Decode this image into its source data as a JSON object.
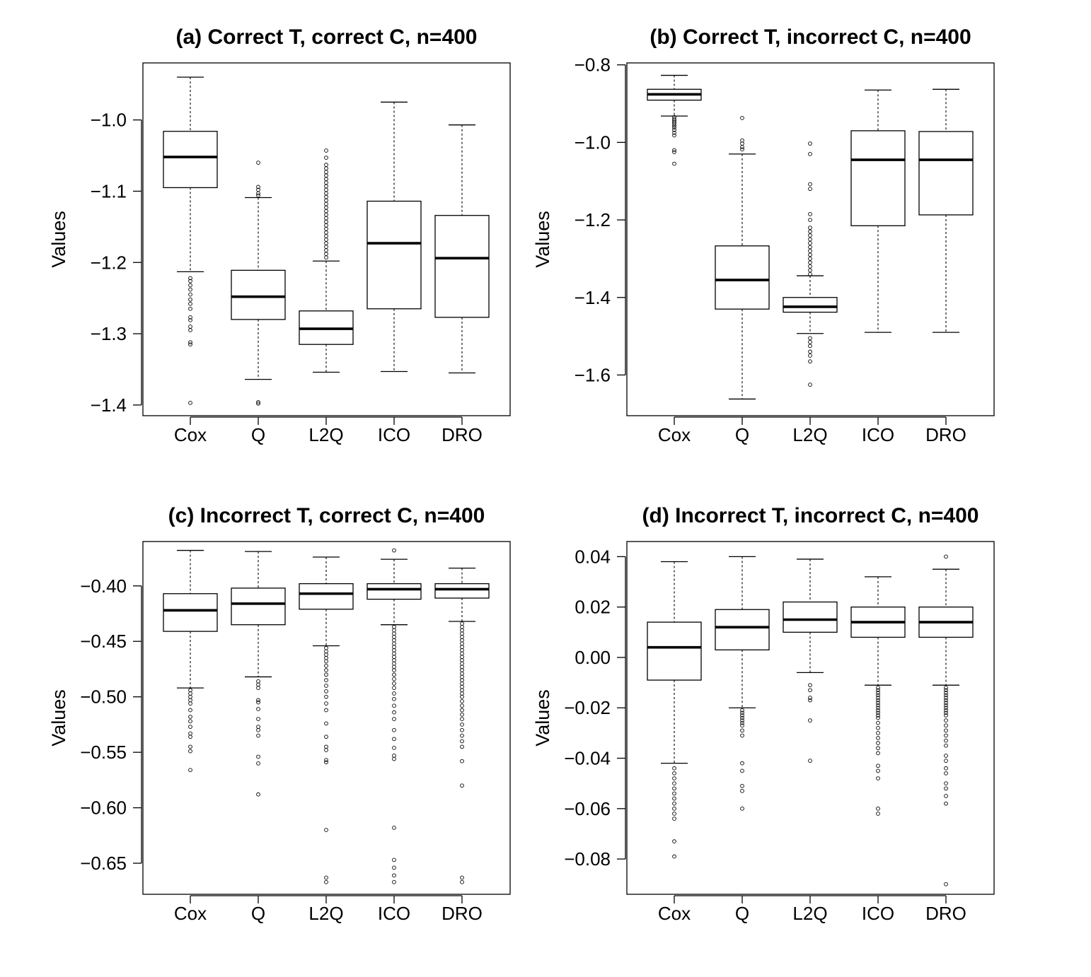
{
  "chart_data": [
    {
      "type": "box",
      "title": "(a) Correct T, correct C, n=400",
      "ylabel": "Values",
      "categories": [
        "Cox",
        "Q",
        "L2Q",
        "ICO",
        "DRO"
      ],
      "ylim": [
        -1.415,
        -0.92
      ],
      "yticks": [
        "-1.0",
        "-1.1",
        "-1.2",
        "-1.3",
        "-1.4"
      ],
      "boxes": [
        {
          "name": "Cox",
          "whisker_low": -1.213,
          "q1": -1.095,
          "median": -1.052,
          "q3": -1.016,
          "whisker_high": -0.94,
          "outliers": [
            -1.222,
            -1.226,
            -1.232,
            -1.238,
            -1.245,
            -1.252,
            -1.258,
            -1.265,
            -1.277,
            -1.281,
            -1.29,
            -1.295,
            -1.312,
            -1.315,
            -1.397
          ]
        },
        {
          "name": "Q",
          "whisker_low": -1.364,
          "q1": -1.28,
          "median": -1.248,
          "q3": -1.211,
          "whisker_high": -1.109,
          "outliers": [
            -1.06,
            -1.094,
            -1.098,
            -1.103,
            -1.106,
            -1.396,
            -1.398
          ]
        },
        {
          "name": "L2Q",
          "whisker_low": -1.354,
          "q1": -1.315,
          "median": -1.293,
          "q3": -1.268,
          "whisker_high": -1.198,
          "outliers": [
            -1.043,
            -1.053,
            -1.063,
            -1.068,
            -1.073,
            -1.078,
            -1.083,
            -1.088,
            -1.093,
            -1.098,
            -1.103,
            -1.108,
            -1.113,
            -1.118,
            -1.123,
            -1.128,
            -1.133,
            -1.138,
            -1.143,
            -1.148,
            -1.153,
            -1.158,
            -1.163,
            -1.168,
            -1.173,
            -1.178,
            -1.183,
            -1.188,
            -1.193
          ]
        },
        {
          "name": "ICO",
          "whisker_low": -1.353,
          "q1": -1.265,
          "median": -1.173,
          "q3": -1.114,
          "whisker_high": -0.975,
          "outliers": []
        },
        {
          "name": "DRO",
          "whisker_low": -1.355,
          "q1": -1.277,
          "median": -1.194,
          "q3": -1.134,
          "whisker_high": -1.007,
          "outliers": []
        }
      ]
    },
    {
      "type": "box",
      "title": "(b) Correct T, incorrect C, n=400",
      "ylabel": "Values",
      "categories": [
        "Cox",
        "Q",
        "L2Q",
        "ICO",
        "DRO"
      ],
      "ylim": [
        -1.705,
        -0.795
      ],
      "yticks": [
        "-0.8",
        "-1.0",
        "-1.2",
        "-1.4",
        "-1.6"
      ],
      "boxes": [
        {
          "name": "Cox",
          "whisker_low": -0.932,
          "q1": -0.891,
          "median": -0.876,
          "q3": -0.863,
          "whisker_high": -0.827,
          "outliers": [
            -0.935,
            -0.94,
            -0.944,
            -0.948,
            -0.952,
            -0.957,
            -0.962,
            -0.968,
            -0.975,
            -0.982,
            -1.02,
            -1.025,
            -1.055
          ]
        },
        {
          "name": "Q",
          "whisker_low": -1.662,
          "q1": -1.43,
          "median": -1.355,
          "q3": -1.267,
          "whisker_high": -1.03,
          "outliers": [
            -0.937,
            -0.995,
            -1.003,
            -1.012,
            -1.018
          ]
        },
        {
          "name": "L2Q",
          "whisker_low": -1.493,
          "q1": -1.438,
          "median": -1.424,
          "q3": -1.4,
          "whisker_high": -1.344,
          "outliers": [
            -1.003,
            -1.03,
            -1.108,
            -1.12,
            -1.185,
            -1.2,
            -1.22,
            -1.23,
            -1.24,
            -1.25,
            -1.26,
            -1.27,
            -1.28,
            -1.29,
            -1.3,
            -1.31,
            -1.32,
            -1.33,
            -1.34,
            -1.505,
            -1.515,
            -1.525,
            -1.54,
            -1.55,
            -1.565,
            -1.625
          ]
        },
        {
          "name": "ICO",
          "whisker_low": -1.49,
          "q1": -1.215,
          "median": -1.045,
          "q3": -0.97,
          "whisker_high": -0.865,
          "outliers": []
        },
        {
          "name": "DRO",
          "whisker_low": -1.49,
          "q1": -1.187,
          "median": -1.045,
          "q3": -0.972,
          "whisker_high": -0.863,
          "outliers": []
        }
      ]
    },
    {
      "type": "box",
      "title": "(c) Incorrect T, correct C, n=400",
      "ylabel": "Values",
      "categories": [
        "Cox",
        "Q",
        "L2Q",
        "ICO",
        "DRO"
      ],
      "ylim": [
        -0.678,
        -0.36
      ],
      "yticks": [
        "-0.40",
        "-0.45",
        "-0.50",
        "-0.55",
        "-0.60",
        "-0.65"
      ],
      "boxes": [
        {
          "name": "Cox",
          "whisker_low": -0.492,
          "q1": -0.441,
          "median": -0.422,
          "q3": -0.407,
          "whisker_high": -0.368,
          "outliers": [
            -0.494,
            -0.497,
            -0.5,
            -0.503,
            -0.506,
            -0.512,
            -0.518,
            -0.522,
            -0.527,
            -0.533,
            -0.536,
            -0.545,
            -0.549,
            -0.566
          ]
        },
        {
          "name": "Q",
          "whisker_low": -0.482,
          "q1": -0.435,
          "median": -0.416,
          "q3": -0.402,
          "whisker_high": -0.369,
          "outliers": [
            -0.486,
            -0.489,
            -0.492,
            -0.503,
            -0.505,
            -0.511,
            -0.52,
            -0.527,
            -0.53,
            -0.535,
            -0.554,
            -0.56,
            -0.588
          ]
        },
        {
          "name": "L2Q",
          "whisker_low": -0.454,
          "q1": -0.421,
          "median": -0.407,
          "q3": -0.398,
          "whisker_high": -0.374,
          "outliers": [
            -0.456,
            -0.459,
            -0.462,
            -0.465,
            -0.468,
            -0.472,
            -0.476,
            -0.48,
            -0.485,
            -0.49,
            -0.495,
            -0.5,
            -0.506,
            -0.512,
            -0.524,
            -0.536,
            -0.545,
            -0.548,
            -0.557,
            -0.559,
            -0.62,
            -0.663,
            -0.667
          ]
        },
        {
          "name": "ICO",
          "whisker_low": -0.435,
          "q1": -0.412,
          "median": -0.403,
          "q3": -0.398,
          "whisker_high": -0.376,
          "outliers": [
            -0.368,
            -0.437,
            -0.44,
            -0.443,
            -0.446,
            -0.449,
            -0.452,
            -0.455,
            -0.458,
            -0.461,
            -0.464,
            -0.467,
            -0.47,
            -0.473,
            -0.476,
            -0.48,
            -0.484,
            -0.488,
            -0.492,
            -0.497,
            -0.502,
            -0.508,
            -0.514,
            -0.52,
            -0.53,
            -0.538,
            -0.546,
            -0.553,
            -0.556,
            -0.618,
            -0.647,
            -0.654,
            -0.661,
            -0.667
          ]
        },
        {
          "name": "DRO",
          "whisker_low": -0.432,
          "q1": -0.411,
          "median": -0.403,
          "q3": -0.398,
          "whisker_high": -0.384,
          "outliers": [
            -0.434,
            -0.437,
            -0.44,
            -0.443,
            -0.446,
            -0.449,
            -0.452,
            -0.455,
            -0.458,
            -0.461,
            -0.464,
            -0.467,
            -0.47,
            -0.473,
            -0.476,
            -0.479,
            -0.482,
            -0.485,
            -0.488,
            -0.491,
            -0.494,
            -0.497,
            -0.5,
            -0.504,
            -0.508,
            -0.512,
            -0.516,
            -0.52,
            -0.525,
            -0.53,
            -0.535,
            -0.54,
            -0.545,
            -0.558,
            -0.58,
            -0.663,
            -0.667
          ]
        }
      ]
    },
    {
      "type": "box",
      "title": "(d) Incorrect T, incorrect C, n=400",
      "ylabel": "Values",
      "categories": [
        "Cox",
        "Q",
        "L2Q",
        "ICO",
        "DRO"
      ],
      "ylim": [
        -0.094,
        0.046
      ],
      "yticks": [
        "0.04",
        "0.02",
        "0.00",
        "-0.02",
        "-0.04",
        "-0.06",
        "-0.08"
      ],
      "boxes": [
        {
          "name": "Cox",
          "whisker_low": -0.042,
          "q1": -0.009,
          "median": 0.004,
          "q3": 0.014,
          "whisker_high": 0.038,
          "outliers": [
            -0.044,
            -0.046,
            -0.048,
            -0.05,
            -0.052,
            -0.054,
            -0.056,
            -0.058,
            -0.06,
            -0.062,
            -0.064,
            -0.073,
            -0.079
          ]
        },
        {
          "name": "Q",
          "whisker_low": -0.02,
          "q1": 0.003,
          "median": 0.012,
          "q3": 0.019,
          "whisker_high": 0.04,
          "outliers": [
            -0.021,
            -0.022,
            -0.023,
            -0.024,
            -0.025,
            -0.026,
            -0.027,
            -0.029,
            -0.031,
            -0.042,
            -0.045,
            -0.051,
            -0.053,
            -0.06
          ]
        },
        {
          "name": "L2Q",
          "whisker_low": -0.006,
          "q1": 0.01,
          "median": 0.015,
          "q3": 0.022,
          "whisker_high": 0.039,
          "outliers": [
            -0.011,
            -0.013,
            -0.016,
            -0.017,
            -0.025,
            -0.041
          ]
        },
        {
          "name": "ICO",
          "whisker_low": -0.011,
          "q1": 0.008,
          "median": 0.014,
          "q3": 0.02,
          "whisker_high": 0.032,
          "outliers": [
            -0.012,
            -0.013,
            -0.014,
            -0.015,
            -0.016,
            -0.017,
            -0.018,
            -0.019,
            -0.02,
            -0.021,
            -0.022,
            -0.023,
            -0.024,
            -0.026,
            -0.028,
            -0.03,
            -0.032,
            -0.034,
            -0.036,
            -0.038,
            -0.043,
            -0.045,
            -0.048,
            -0.06,
            -0.062
          ]
        },
        {
          "name": "DRO",
          "whisker_low": -0.011,
          "q1": 0.008,
          "median": 0.014,
          "q3": 0.02,
          "whisker_high": 0.035,
          "outliers": [
            0.04,
            -0.012,
            -0.013,
            -0.014,
            -0.015,
            -0.016,
            -0.017,
            -0.018,
            -0.019,
            -0.02,
            -0.021,
            -0.022,
            -0.023,
            -0.025,
            -0.027,
            -0.029,
            -0.031,
            -0.033,
            -0.035,
            -0.039,
            -0.041,
            -0.044,
            -0.046,
            -0.05,
            -0.052,
            -0.055,
            -0.058,
            -0.09
          ]
        }
      ]
    }
  ]
}
